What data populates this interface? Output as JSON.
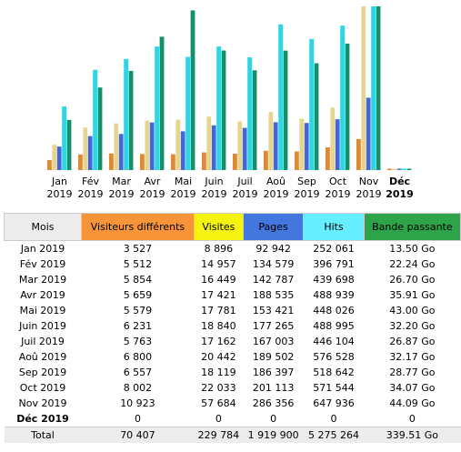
{
  "chart_data": {
    "type": "bar",
    "categories": [
      "Jan 2019",
      "Fév 2019",
      "Mar 2019",
      "Avr 2019",
      "Mai 2019",
      "Juin 2019",
      "Juil 2019",
      "Aoû 2019",
      "Sep 2019",
      "Oct 2019",
      "Nov 2019",
      "Déc 2019"
    ],
    "series": [
      {
        "name": "Visiteurs différents",
        "color": "#d98a3a",
        "header_color": "#f89438",
        "values": [
          3527,
          5512,
          5854,
          5659,
          5579,
          6231,
          5763,
          6800,
          6557,
          8002,
          10923,
          0
        ],
        "value_labels": [
          "3 527",
          "5 512",
          "5 854",
          "5 659",
          "5 579",
          "6 231",
          "5 763",
          "6 800",
          "6 557",
          "8 002",
          "10 923",
          "0"
        ]
      },
      {
        "name": "Visites",
        "color": "#e6d58a",
        "header_color": "#f4f410",
        "values": [
          8896,
          14957,
          16449,
          17421,
          17781,
          18840,
          17162,
          20442,
          18119,
          22033,
          57684,
          0
        ],
        "value_labels": [
          "8 896",
          "14 957",
          "16 449",
          "17 421",
          "17 781",
          "18 840",
          "17 162",
          "20 442",
          "18 119",
          "22 033",
          "57 684",
          "0"
        ]
      },
      {
        "name": "Pages",
        "color": "#4466d8",
        "header_color": "#4477dd",
        "values": [
          92942,
          134579,
          142787,
          188535,
          153421,
          177265,
          167003,
          189502,
          186397,
          201113,
          286356,
          0
        ],
        "value_labels": [
          "92 942",
          "134 579",
          "142 787",
          "188 535",
          "153 421",
          "177 265",
          "167 003",
          "189 502",
          "186 397",
          "201 113",
          "286 356",
          "0"
        ]
      },
      {
        "name": "Hits",
        "color": "#33d3e3",
        "header_color": "#66eeff",
        "values": [
          252061,
          396791,
          439698,
          488939,
          448026,
          488995,
          446104,
          576528,
          518642,
          571544,
          647936,
          0
        ],
        "value_labels": [
          "252 061",
          "396 791",
          "439 698",
          "488 939",
          "448 026",
          "488 995",
          "446 104",
          "576 528",
          "518 642",
          "571 544",
          "647 936",
          "0"
        ]
      },
      {
        "name": "Bande passante",
        "color": "#13906a",
        "header_color": "#2ea44a",
        "values": [
          13.5,
          22.24,
          26.7,
          35.91,
          43.0,
          32.2,
          26.87,
          32.17,
          28.77,
          34.07,
          44.09,
          0
        ],
        "value_labels": [
          "13.50 Go",
          "22.24 Go",
          "26.70 Go",
          "35.91 Go",
          "43.00 Go",
          "32.20 Go",
          "26.87 Go",
          "32.17 Go",
          "28.77 Go",
          "34.07 Go",
          "44.09 Go",
          "0"
        ]
      }
    ]
  },
  "table": {
    "header": "Mois",
    "total_label": "Total",
    "totals": [
      "70 407",
      "229 784",
      "1 919 900",
      "5 275 264",
      "339.51 Go"
    ]
  }
}
